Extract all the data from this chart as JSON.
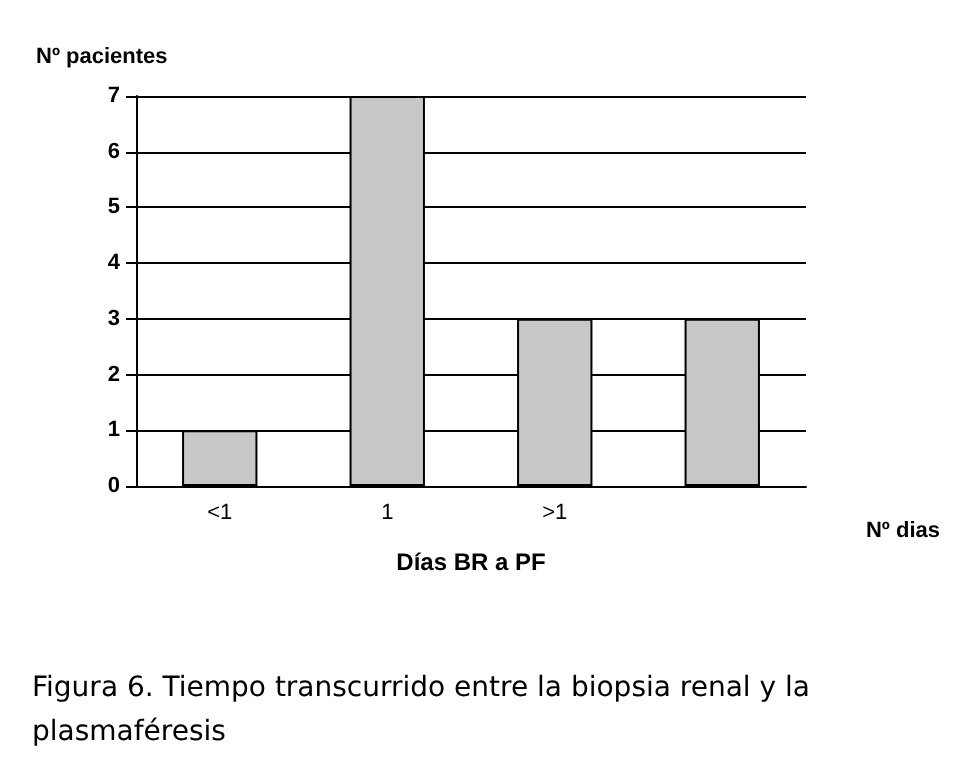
{
  "chart_data": {
    "type": "bar",
    "ylabel": "Nº pacientes",
    "xlabel": "Días BR a PF",
    "categories": [
      "<1",
      "1",
      ">1",
      null
    ],
    "values": [
      1,
      7,
      3,
      3
    ],
    "color": "#c8c8c8",
    "ylim": [
      0,
      7
    ],
    "yticks": [
      0,
      1,
      2,
      3,
      4,
      5,
      6,
      7
    ],
    "grid": "y",
    "annotations": [
      "Nº dias",
      "Figura 6. Tiempo transcurrido entre la biopsia renal y la plasmaféresis"
    ]
  }
}
